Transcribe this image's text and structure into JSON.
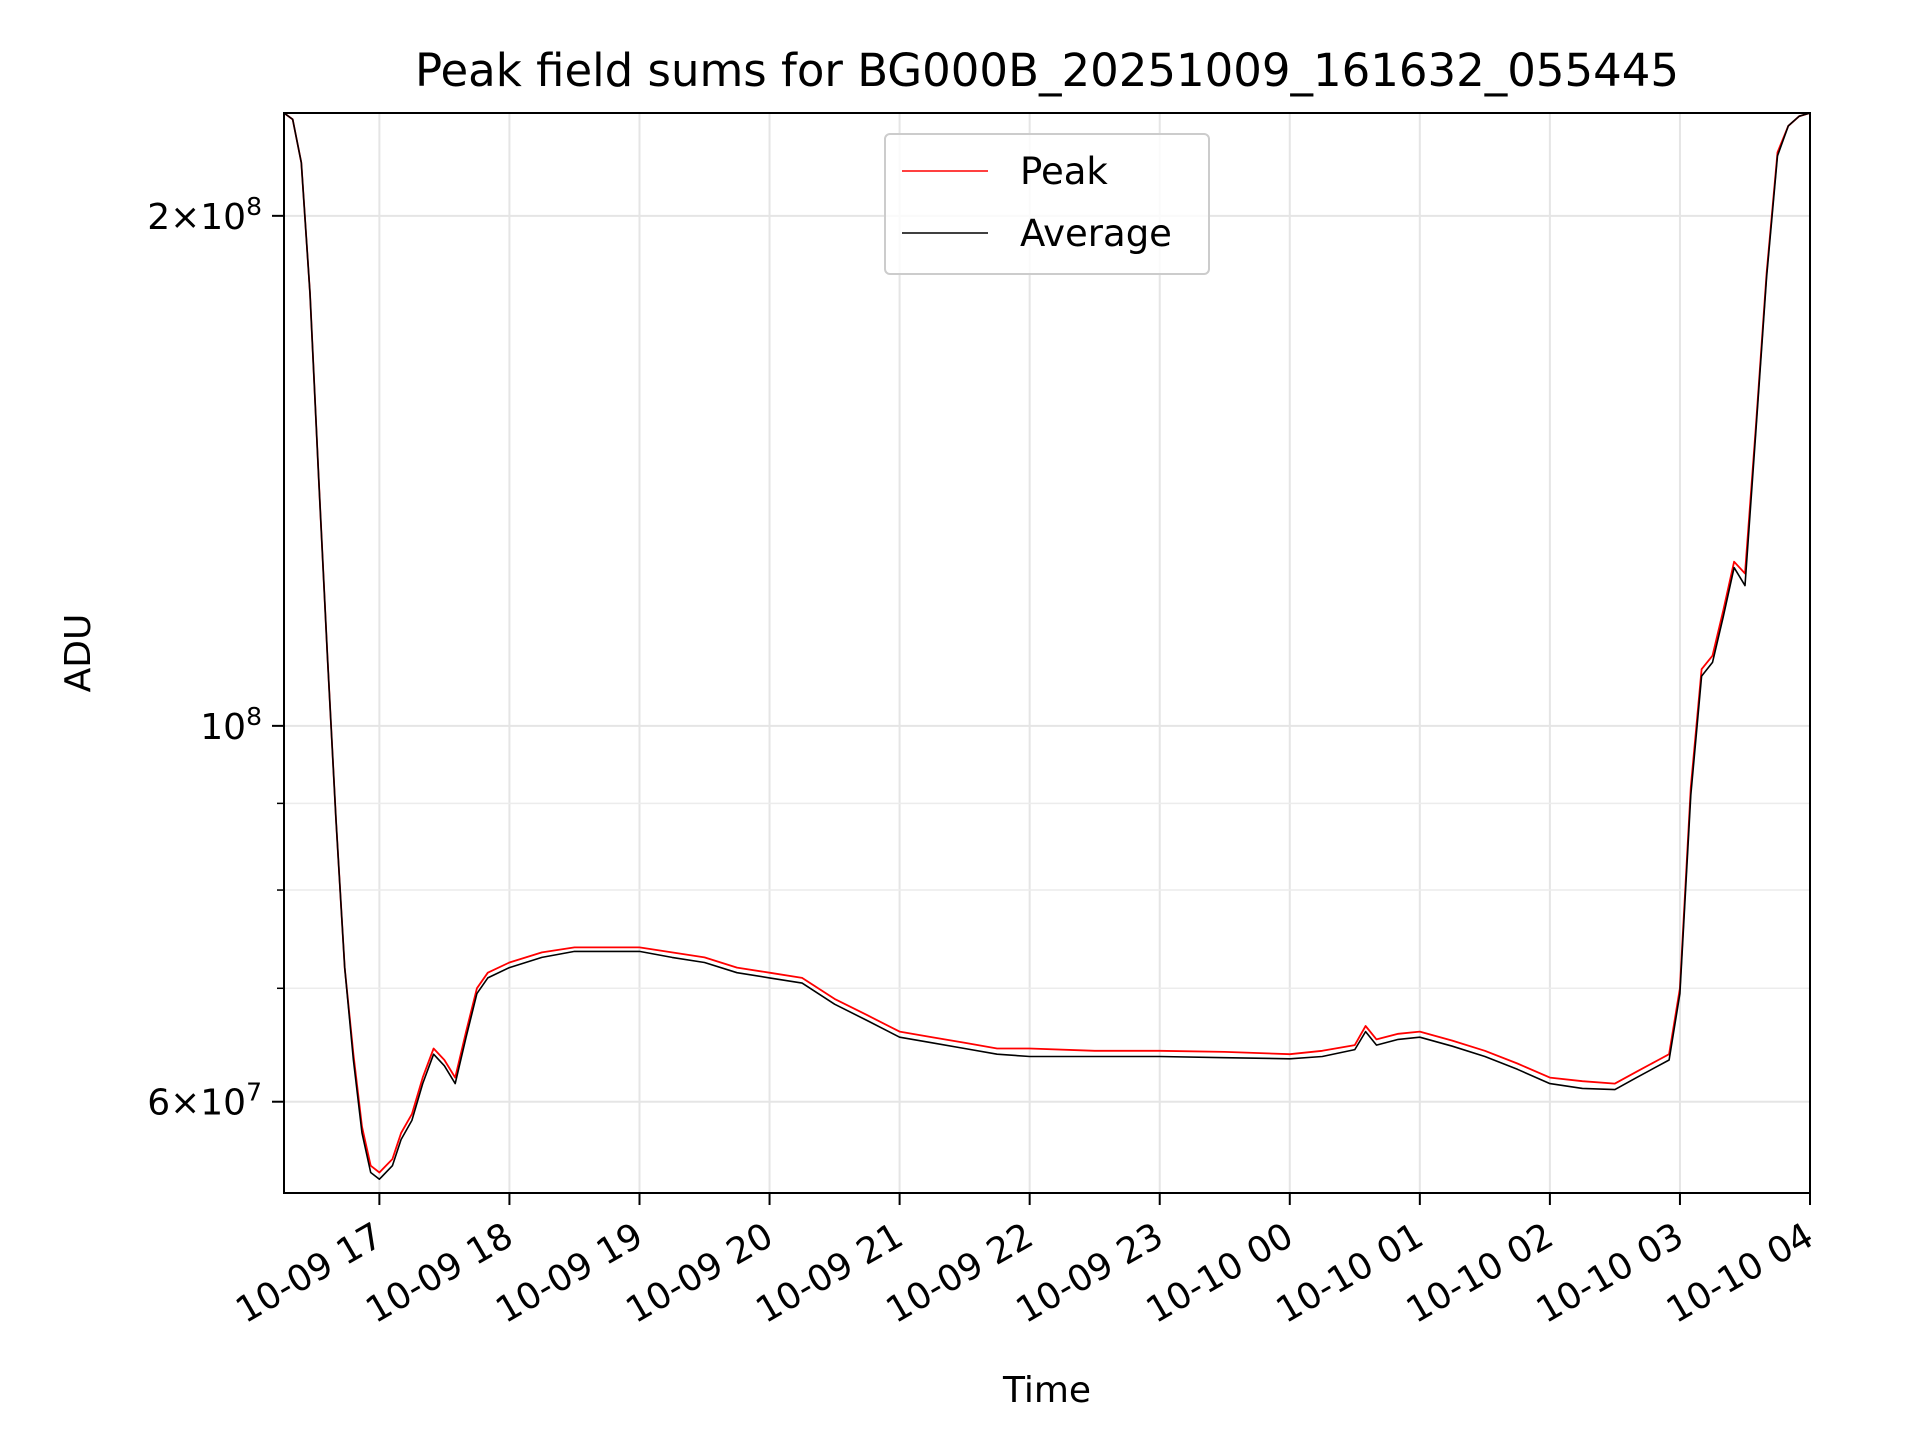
{
  "chart_data": {
    "type": "line",
    "title": "Peak field sums for BG000B_20251009_161632_055445",
    "xlabel": "Time",
    "ylabel": "ADU",
    "y_scale": "log",
    "grid": true,
    "legend_placement": "top-center",
    "xlim": [
      "2025-10-09 16:16",
      "2025-10-10 04:00"
    ],
    "ylim": [
      53000000,
      230000000
    ],
    "x_ticks": [
      "10-09 17",
      "10-09 18",
      "10-09 19",
      "10-09 20",
      "10-09 21",
      "10-09 22",
      "10-09 23",
      "10-10 00",
      "10-10 01",
      "10-10 02",
      "10-10 03",
      "10-10 04"
    ],
    "y_ticks": [
      {
        "value": 60000000,
        "mantissa": "6",
        "times": "×",
        "base": "10",
        "exponent": "7"
      },
      {
        "value": 100000000,
        "mantissa": "",
        "times": "",
        "base": "10",
        "exponent": "8"
      },
      {
        "value": 200000000,
        "mantissa": "2",
        "times": "×",
        "base": "10",
        "exponent": "8"
      }
    ],
    "y_minor_ticks": [
      70000000,
      80000000,
      90000000
    ],
    "series": [
      {
        "name": "Peak",
        "color": "#ff0000",
        "x": [
          "2025-10-09 16:16",
          "2025-10-09 16:20",
          "2025-10-09 16:24",
          "2025-10-09 16:28",
          "2025-10-09 16:32",
          "2025-10-09 16:36",
          "2025-10-09 16:40",
          "2025-10-09 16:44",
          "2025-10-09 16:48",
          "2025-10-09 16:52",
          "2025-10-09 16:56",
          "2025-10-09 17:00",
          "2025-10-09 17:06",
          "2025-10-09 17:10",
          "2025-10-09 17:15",
          "2025-10-09 17:20",
          "2025-10-09 17:25",
          "2025-10-09 17:30",
          "2025-10-09 17:35",
          "2025-10-09 17:40",
          "2025-10-09 17:45",
          "2025-10-09 17:50",
          "2025-10-09 18:00",
          "2025-10-09 18:15",
          "2025-10-09 18:30",
          "2025-10-09 18:45",
          "2025-10-09 19:00",
          "2025-10-09 19:15",
          "2025-10-09 19:30",
          "2025-10-09 19:45",
          "2025-10-09 20:00",
          "2025-10-09 20:15",
          "2025-10-09 20:30",
          "2025-10-09 20:45",
          "2025-10-09 21:00",
          "2025-10-09 21:15",
          "2025-10-09 21:30",
          "2025-10-09 21:45",
          "2025-10-09 22:00",
          "2025-10-09 22:30",
          "2025-10-09 23:00",
          "2025-10-09 23:30",
          "2025-10-10 00:00",
          "2025-10-10 00:15",
          "2025-10-10 00:30",
          "2025-10-10 00:35",
          "2025-10-10 00:40",
          "2025-10-10 00:50",
          "2025-10-10 01:00",
          "2025-10-10 01:15",
          "2025-10-10 01:30",
          "2025-10-10 01:45",
          "2025-10-10 02:00",
          "2025-10-10 02:15",
          "2025-10-10 02:30",
          "2025-10-10 02:40",
          "2025-10-10 02:50",
          "2025-10-10 02:55",
          "2025-10-10 03:00",
          "2025-10-10 03:05",
          "2025-10-10 03:10",
          "2025-10-10 03:15",
          "2025-10-10 03:20",
          "2025-10-10 03:25",
          "2025-10-10 03:30",
          "2025-10-10 03:35",
          "2025-10-10 03:40",
          "2025-10-10 03:45",
          "2025-10-10 03:50",
          "2025-10-10 03:55",
          "2025-10-10 04:00"
        ],
        "y": [
          230000000,
          228000000,
          215000000,
          180000000,
          140000000,
          110000000,
          88000000,
          72000000,
          64000000,
          58000000,
          55000000,
          54500000,
          55500000,
          57500000,
          59000000,
          62000000,
          64500000,
          63500000,
          62000000,
          66000000,
          70000000,
          71500000,
          72500000,
          73500000,
          74000000,
          74000000,
          74000000,
          73500000,
          73000000,
          72000000,
          71500000,
          71000000,
          69000000,
          67500000,
          66000000,
          65500000,
          65000000,
          64500000,
          64500000,
          64300000,
          64300000,
          64200000,
          64000000,
          64300000,
          64800000,
          66500000,
          65300000,
          65800000,
          66000000,
          65200000,
          64300000,
          63200000,
          62000000,
          61700000,
          61500000,
          62500000,
          63500000,
          64000000,
          70000000,
          92000000,
          108000000,
          110000000,
          117000000,
          125000000,
          123000000,
          150000000,
          185000000,
          218000000,
          226000000,
          229000000,
          230000000
        ]
      },
      {
        "name": "Average",
        "color": "#000000",
        "x": [
          "2025-10-09 16:16",
          "2025-10-09 16:20",
          "2025-10-09 16:24",
          "2025-10-09 16:28",
          "2025-10-09 16:32",
          "2025-10-09 16:36",
          "2025-10-09 16:40",
          "2025-10-09 16:44",
          "2025-10-09 16:48",
          "2025-10-09 16:52",
          "2025-10-09 16:56",
          "2025-10-09 17:00",
          "2025-10-09 17:06",
          "2025-10-09 17:10",
          "2025-10-09 17:15",
          "2025-10-09 17:20",
          "2025-10-09 17:25",
          "2025-10-09 17:30",
          "2025-10-09 17:35",
          "2025-10-09 17:40",
          "2025-10-09 17:45",
          "2025-10-09 17:50",
          "2025-10-09 18:00",
          "2025-10-09 18:15",
          "2025-10-09 18:30",
          "2025-10-09 18:45",
          "2025-10-09 19:00",
          "2025-10-09 19:15",
          "2025-10-09 19:30",
          "2025-10-09 19:45",
          "2025-10-09 20:00",
          "2025-10-09 20:15",
          "2025-10-09 20:30",
          "2025-10-09 20:45",
          "2025-10-09 21:00",
          "2025-10-09 21:15",
          "2025-10-09 21:30",
          "2025-10-09 21:45",
          "2025-10-09 22:00",
          "2025-10-09 22:30",
          "2025-10-09 23:00",
          "2025-10-09 23:30",
          "2025-10-10 00:00",
          "2025-10-10 00:15",
          "2025-10-10 00:30",
          "2025-10-10 00:35",
          "2025-10-10 00:40",
          "2025-10-10 00:50",
          "2025-10-10 01:00",
          "2025-10-10 01:15",
          "2025-10-10 01:30",
          "2025-10-10 01:45",
          "2025-10-10 02:00",
          "2025-10-10 02:15",
          "2025-10-10 02:30",
          "2025-10-10 02:40",
          "2025-10-10 02:50",
          "2025-10-10 02:55",
          "2025-10-10 03:00",
          "2025-10-10 03:05",
          "2025-10-10 03:10",
          "2025-10-10 03:15",
          "2025-10-10 03:20",
          "2025-10-10 03:25",
          "2025-10-10 03:30",
          "2025-10-10 03:35",
          "2025-10-10 03:40",
          "2025-10-10 03:45",
          "2025-10-10 03:50",
          "2025-10-10 03:55",
          "2025-10-10 04:00"
        ],
        "y": [
          230000000,
          228000000,
          215000000,
          180000000,
          140000000,
          110000000,
          88000000,
          72000000,
          63500000,
          57500000,
          54500000,
          54000000,
          55000000,
          57000000,
          58500000,
          61500000,
          64000000,
          63000000,
          61500000,
          65500000,
          69500000,
          71000000,
          72000000,
          73000000,
          73600000,
          73600000,
          73600000,
          73000000,
          72500000,
          71500000,
          71000000,
          70500000,
          68500000,
          67000000,
          65500000,
          65000000,
          64500000,
          64000000,
          63800000,
          63800000,
          63800000,
          63700000,
          63600000,
          63800000,
          64400000,
          66000000,
          64800000,
          65300000,
          65500000,
          64700000,
          63800000,
          62700000,
          61500000,
          61100000,
          61000000,
          62000000,
          63000000,
          63500000,
          69500000,
          91000000,
          107000000,
          109000000,
          116000000,
          124000000,
          121000000,
          149000000,
          184000000,
          217000000,
          226000000,
          229000000,
          230000000
        ]
      }
    ]
  }
}
